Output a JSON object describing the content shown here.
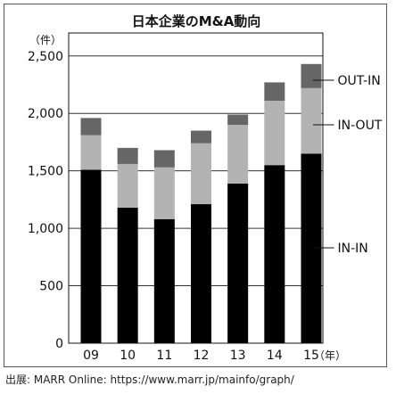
{
  "title": "日本企業のM&A動向",
  "source": "出展: MARR Online: https://www.marr.jp/mainfo/graph/",
  "chart_data": {
    "type": "bar",
    "stacked": true,
    "title": "日本企業のM&A動向",
    "y_unit_label": "（件）",
    "x_unit_label": "（年）",
    "categories": [
      "09",
      "10",
      "11",
      "12",
      "13",
      "14",
      "15"
    ],
    "ylim": [
      0,
      2700
    ],
    "yticks": [
      0,
      500,
      1000,
      1500,
      2000,
      2500
    ],
    "ytick_labels": [
      "0",
      "500",
      "1,000",
      "1,500",
      "2,000",
      "2,500"
    ],
    "grid": true,
    "series": [
      {
        "name": "IN-IN",
        "color": "#000000",
        "values": [
          1510,
          1180,
          1080,
          1210,
          1390,
          1550,
          1650
        ]
      },
      {
        "name": "IN-OUT",
        "color": "#b3b3b3",
        "values": [
          300,
          380,
          450,
          530,
          510,
          560,
          570
        ]
      },
      {
        "name": "OUT-IN",
        "color": "#666666",
        "values": [
          150,
          140,
          150,
          110,
          90,
          160,
          210
        ]
      }
    ],
    "legend_placement": "right"
  }
}
